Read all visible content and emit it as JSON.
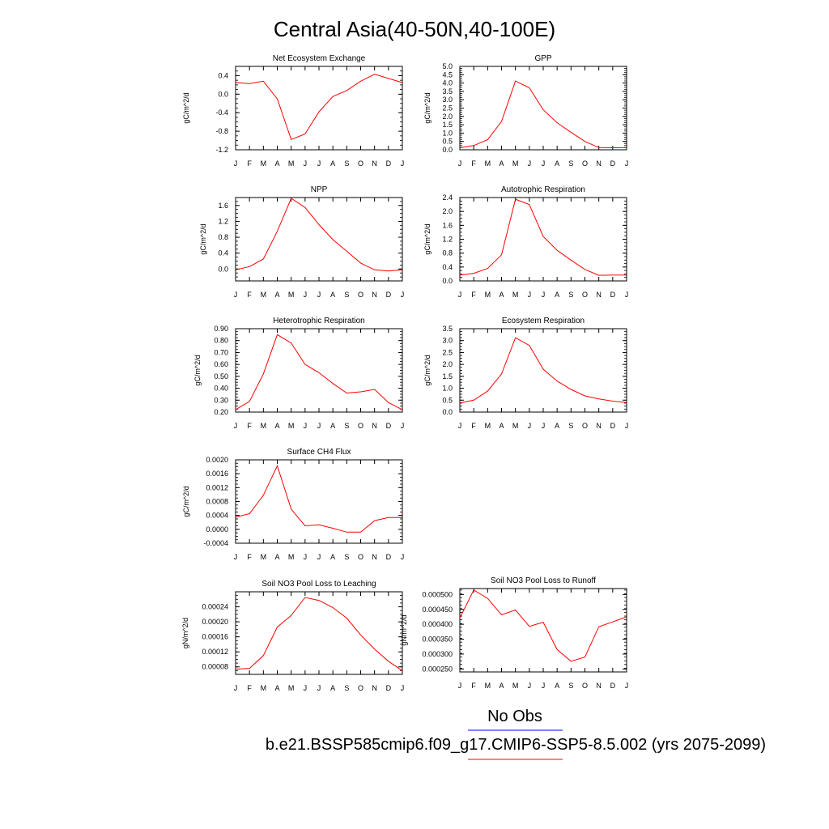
{
  "title": "Central Asia(40-50N,40-100E)",
  "colors": {
    "model": "#ff0000",
    "obs": "#0000ff",
    "axis": "#000000"
  },
  "legend": {
    "obs_label": "No Obs",
    "model_label": "b.e21.BSSP585cmip6.f09_g17.CMIP6-SSP5-8.5.002 (yrs 2075-2099)"
  },
  "chart_data": [
    {
      "type": "line",
      "title": "Net Ecosystem Exchange",
      "ylabel": "gC/m^2/d",
      "categories": [
        "J",
        "F",
        "M",
        "A",
        "M",
        "J",
        "J",
        "A",
        "S",
        "O",
        "N",
        "D",
        "J"
      ],
      "ylim": [
        -1.2,
        0.6
      ],
      "yticks": [
        -1.2,
        -0.8,
        -0.4,
        0.0,
        0.4
      ],
      "ytick_labels": [
        "-1.2",
        "-0.8",
        "-0.4",
        "0.0",
        "0.4"
      ],
      "values": [
        0.25,
        0.23,
        0.28,
        -0.1,
        -0.98,
        -0.86,
        -0.38,
        -0.05,
        0.08,
        0.28,
        0.43,
        0.34,
        0.25
      ]
    },
    {
      "type": "line",
      "title": "GPP",
      "ylabel": "gC/m^2/d",
      "categories": [
        "J",
        "F",
        "M",
        "A",
        "M",
        "J",
        "J",
        "A",
        "S",
        "O",
        "N",
        "D",
        "J"
      ],
      "ylim": [
        0.0,
        5.0
      ],
      "yticks": [
        0.0,
        0.5,
        1.0,
        1.5,
        2.0,
        2.5,
        3.0,
        3.5,
        4.0,
        4.5,
        5.0
      ],
      "ytick_labels": [
        "0.0",
        "0.5",
        "1.0",
        "1.5",
        "2.0",
        "2.5",
        "3.0",
        "3.5",
        "4.0",
        "4.5",
        "5.0"
      ],
      "values": [
        0.12,
        0.25,
        0.6,
        1.7,
        4.12,
        3.72,
        2.4,
        1.62,
        1.05,
        0.5,
        0.13,
        0.12,
        0.13
      ]
    },
    {
      "type": "line",
      "title": "NPP",
      "ylabel": "gC/m^2/d",
      "categories": [
        "J",
        "F",
        "M",
        "A",
        "M",
        "J",
        "J",
        "A",
        "S",
        "O",
        "N",
        "D",
        "J"
      ],
      "ylim": [
        -0.3,
        1.8
      ],
      "yticks": [
        0.0,
        0.4,
        0.8,
        1.2,
        1.6
      ],
      "ytick_labels": [
        "0.0",
        "0.4",
        "0.8",
        "1.2",
        "1.6"
      ],
      "values": [
        -0.02,
        0.06,
        0.25,
        0.95,
        1.78,
        1.55,
        1.12,
        0.74,
        0.45,
        0.15,
        -0.02,
        -0.05,
        -0.02
      ]
    },
    {
      "type": "line",
      "title": "Autotrophic Respiration",
      "ylabel": "gC/m^2/d",
      "categories": [
        "J",
        "F",
        "M",
        "A",
        "M",
        "J",
        "J",
        "A",
        "S",
        "O",
        "N",
        "D",
        "J"
      ],
      "ylim": [
        0.0,
        2.4
      ],
      "yticks": [
        0.0,
        0.4,
        0.8,
        1.2,
        1.6,
        2.0,
        2.4
      ],
      "ytick_labels": [
        "0.0",
        "0.4",
        "0.8",
        "1.2",
        "1.6",
        "2.0",
        "2.4"
      ],
      "values": [
        0.17,
        0.22,
        0.36,
        0.75,
        2.35,
        2.2,
        1.28,
        0.88,
        0.6,
        0.33,
        0.16,
        0.17,
        0.17
      ]
    },
    {
      "type": "line",
      "title": "Heterotrophic Respiration",
      "ylabel": "gC/m^2/d",
      "categories": [
        "J",
        "F",
        "M",
        "A",
        "M",
        "J",
        "J",
        "A",
        "S",
        "O",
        "N",
        "D",
        "J"
      ],
      "ylim": [
        0.2,
        0.9
      ],
      "yticks": [
        0.2,
        0.3,
        0.4,
        0.5,
        0.6,
        0.7,
        0.8,
        0.9
      ],
      "ytick_labels": [
        "0.20",
        "0.30",
        "0.40",
        "0.50",
        "0.60",
        "0.70",
        "0.80",
        "0.90"
      ],
      "values": [
        0.22,
        0.29,
        0.52,
        0.85,
        0.78,
        0.6,
        0.53,
        0.44,
        0.36,
        0.37,
        0.39,
        0.28,
        0.22
      ]
    },
    {
      "type": "line",
      "title": "Ecosystem Respiration",
      "ylabel": "gC/m^2/d",
      "categories": [
        "J",
        "F",
        "M",
        "A",
        "M",
        "J",
        "J",
        "A",
        "S",
        "O",
        "N",
        "D",
        "J"
      ],
      "ylim": [
        0.0,
        3.5
      ],
      "yticks": [
        0.0,
        0.5,
        1.0,
        1.5,
        2.0,
        2.5,
        3.0,
        3.5
      ],
      "ytick_labels": [
        "0.0",
        "0.5",
        "1.0",
        "1.5",
        "2.0",
        "2.5",
        "3.0",
        "3.5"
      ],
      "values": [
        0.38,
        0.5,
        0.88,
        1.6,
        3.12,
        2.8,
        1.8,
        1.3,
        0.95,
        0.68,
        0.55,
        0.46,
        0.4
      ]
    },
    {
      "type": "line",
      "title": "Surface CH4 Flux",
      "ylabel": "gC/m^2/d",
      "categories": [
        "J",
        "F",
        "M",
        "A",
        "M",
        "J",
        "J",
        "A",
        "S",
        "O",
        "N",
        "D",
        "J"
      ],
      "ylim": [
        -0.0004,
        0.002
      ],
      "yticks": [
        -0.0004,
        0.0,
        0.0004,
        0.0008,
        0.0012,
        0.0016,
        0.002
      ],
      "ytick_labels": [
        "-0.0004",
        "0.0000",
        "0.0004",
        "0.0008",
        "0.0012",
        "0.0016",
        "0.0020"
      ],
      "values": [
        0.00035,
        0.00045,
        0.00098,
        0.00183,
        0.00058,
        0.0001,
        0.00013,
        3e-05,
        -8e-05,
        -8e-05,
        0.00025,
        0.00034,
        0.00034
      ]
    },
    {
      "type": "line",
      "title": "Soil NO3 Pool Loss to Leaching",
      "ylabel": "gN/m^2/d",
      "categories": [
        "J",
        "F",
        "M",
        "A",
        "M",
        "J",
        "J",
        "A",
        "S",
        "O",
        "N",
        "D",
        "J"
      ],
      "ylim": [
        6e-05,
        0.00028
      ],
      "yticks": [
        8e-05,
        0.00012,
        0.00016,
        0.0002,
        0.00024
      ],
      "ytick_labels": [
        "0.00008",
        "0.00012",
        "0.00016",
        "0.00020",
        "0.00024"
      ],
      "values": [
        7.4e-05,
        7.6e-05,
        0.00011,
        0.000186,
        0.000217,
        0.000265,
        0.000257,
        0.000238,
        0.00021,
        0.000165,
        0.000127,
        9.5e-05,
        7e-05
      ]
    },
    {
      "type": "line",
      "title": "Soil NO3 Pool Loss to Runoff",
      "ylabel": "gN/m^2/d",
      "categories": [
        "J",
        "F",
        "M",
        "A",
        "M",
        "J",
        "J",
        "A",
        "S",
        "O",
        "N",
        "D",
        "J"
      ],
      "ylim": [
        0.00024,
        0.00052
      ],
      "yticks": [
        0.00025,
        0.0003,
        0.00035,
        0.0004,
        0.00045,
        0.0005
      ],
      "ytick_labels": [
        "0.000250",
        "0.000300",
        "0.000350",
        "0.000400",
        "0.000450",
        "0.000500"
      ],
      "values": [
        0.000421,
        0.000515,
        0.000487,
        0.000432,
        0.000448,
        0.000393,
        0.000407,
        0.000315,
        0.000276,
        0.00029,
        0.000392,
        0.000408,
        0.000425
      ]
    }
  ]
}
